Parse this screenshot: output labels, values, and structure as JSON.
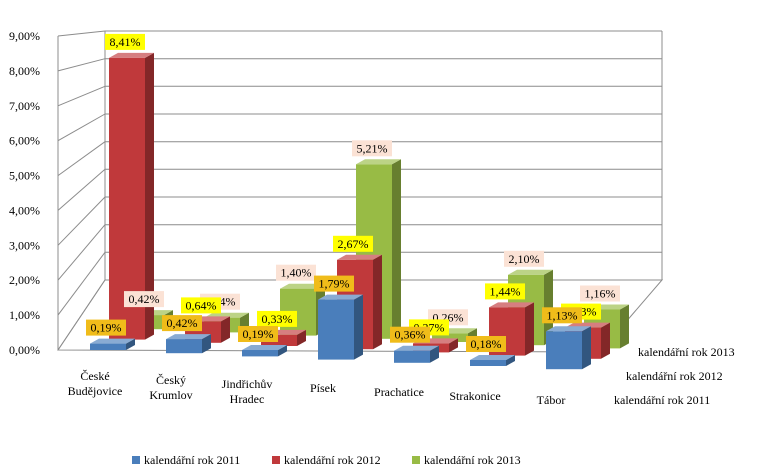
{
  "chart_data": {
    "type": "bar",
    "title": "",
    "xlabel": "",
    "ylabel": "",
    "ylim": [
      0,
      9
    ],
    "y_ticks": [
      "0,00%",
      "1,00%",
      "2,00%",
      "3,00%",
      "4,00%",
      "5,00%",
      "6,00%",
      "7,00%",
      "8,00%",
      "9,00%"
    ],
    "categories": [
      "České Budějovice",
      "Český Krumlov",
      "Jindřichův Hradec",
      "Písek",
      "Prachatice",
      "Strakonice",
      "Tábor"
    ],
    "series": [
      {
        "name": "kalendářní rok 2011",
        "color": "#4a7ebb",
        "values": [
          0.19,
          0.42,
          0.19,
          1.79,
          0.36,
          0.18,
          1.13
        ],
        "labels": [
          "0,19%",
          "0,42%",
          "0,19%",
          "1,79%",
          "0,36%",
          "0,18%",
          "1,13%"
        ],
        "label_bg": "#f0bc1a"
      },
      {
        "name": "kalendářní rok 2012",
        "color": "#c0393b",
        "values": [
          8.41,
          0.64,
          0.33,
          2.67,
          0.27,
          1.44,
          0.93
        ],
        "labels": [
          "8,41%",
          "0,64%",
          "0,33%",
          "2,67%",
          "0,27%",
          "1,44%",
          "0,93%"
        ],
        "label_bg": "#ffff00"
      },
      {
        "name": "kalendářní rok 2013",
        "color": "#98bb45",
        "values": [
          0.42,
          0.44,
          1.4,
          5.21,
          0.26,
          2.1,
          1.16
        ],
        "labels": [
          "0,42%",
          "0,44%",
          "1,40%",
          "5,21%",
          "0,26%",
          "2,10%",
          "1,16%"
        ],
        "label_bg": "#fbe2d5"
      }
    ],
    "legend_position": "bottom",
    "grid": true
  }
}
